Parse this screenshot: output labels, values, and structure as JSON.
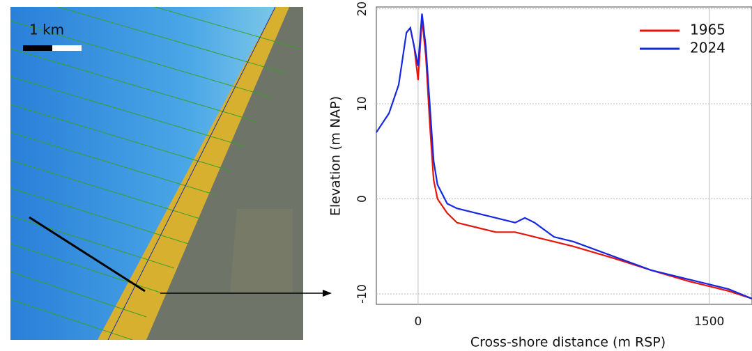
{
  "map": {
    "scale_label": "1 km"
  },
  "chart_data": {
    "type": "line",
    "x_label": "Cross-shore distance (m RSP)",
    "y_label": "Elevation (m NAP)",
    "xlim": [
      -215,
      1720
    ],
    "ylim": [
      -11.1,
      20.2
    ],
    "xticks": [
      0,
      1500
    ],
    "yticks": [
      -10,
      0,
      10,
      20
    ],
    "grid": true,
    "legend": "upper-right",
    "series": [
      {
        "name": "1965",
        "color": "#e8140c",
        "x": [
          -60,
          -40,
          -20,
          0,
          20,
          40,
          60,
          80,
          100,
          150,
          200,
          300,
          400,
          500,
          600,
          700,
          800,
          1000,
          1200,
          1400,
          1600,
          1720
        ],
        "values": [
          17.5,
          18,
          16,
          12.5,
          19,
          15,
          8,
          2,
          0,
          -1.5,
          -2.5,
          -3,
          -3.5,
          -3.5,
          -4,
          -4.5,
          -5,
          -6.2,
          -7.5,
          -8.7,
          -9.7,
          -10.5
        ]
      },
      {
        "name": "2024",
        "color": "#1428e0",
        "x": [
          -215,
          -150,
          -100,
          -60,
          -40,
          -20,
          0,
          20,
          40,
          60,
          80,
          100,
          150,
          200,
          300,
          400,
          500,
          550,
          600,
          700,
          800,
          1000,
          1200,
          1400,
          1600,
          1720
        ],
        "values": [
          7,
          9,
          12,
          17.5,
          18,
          16,
          14,
          19.5,
          16,
          10,
          4,
          1.5,
          -0.5,
          -1,
          -1.5,
          -2,
          -2.5,
          -2,
          -2.5,
          -4,
          -4.5,
          -6,
          -7.5,
          -8.5,
          -9.5,
          -10.5
        ]
      }
    ]
  }
}
